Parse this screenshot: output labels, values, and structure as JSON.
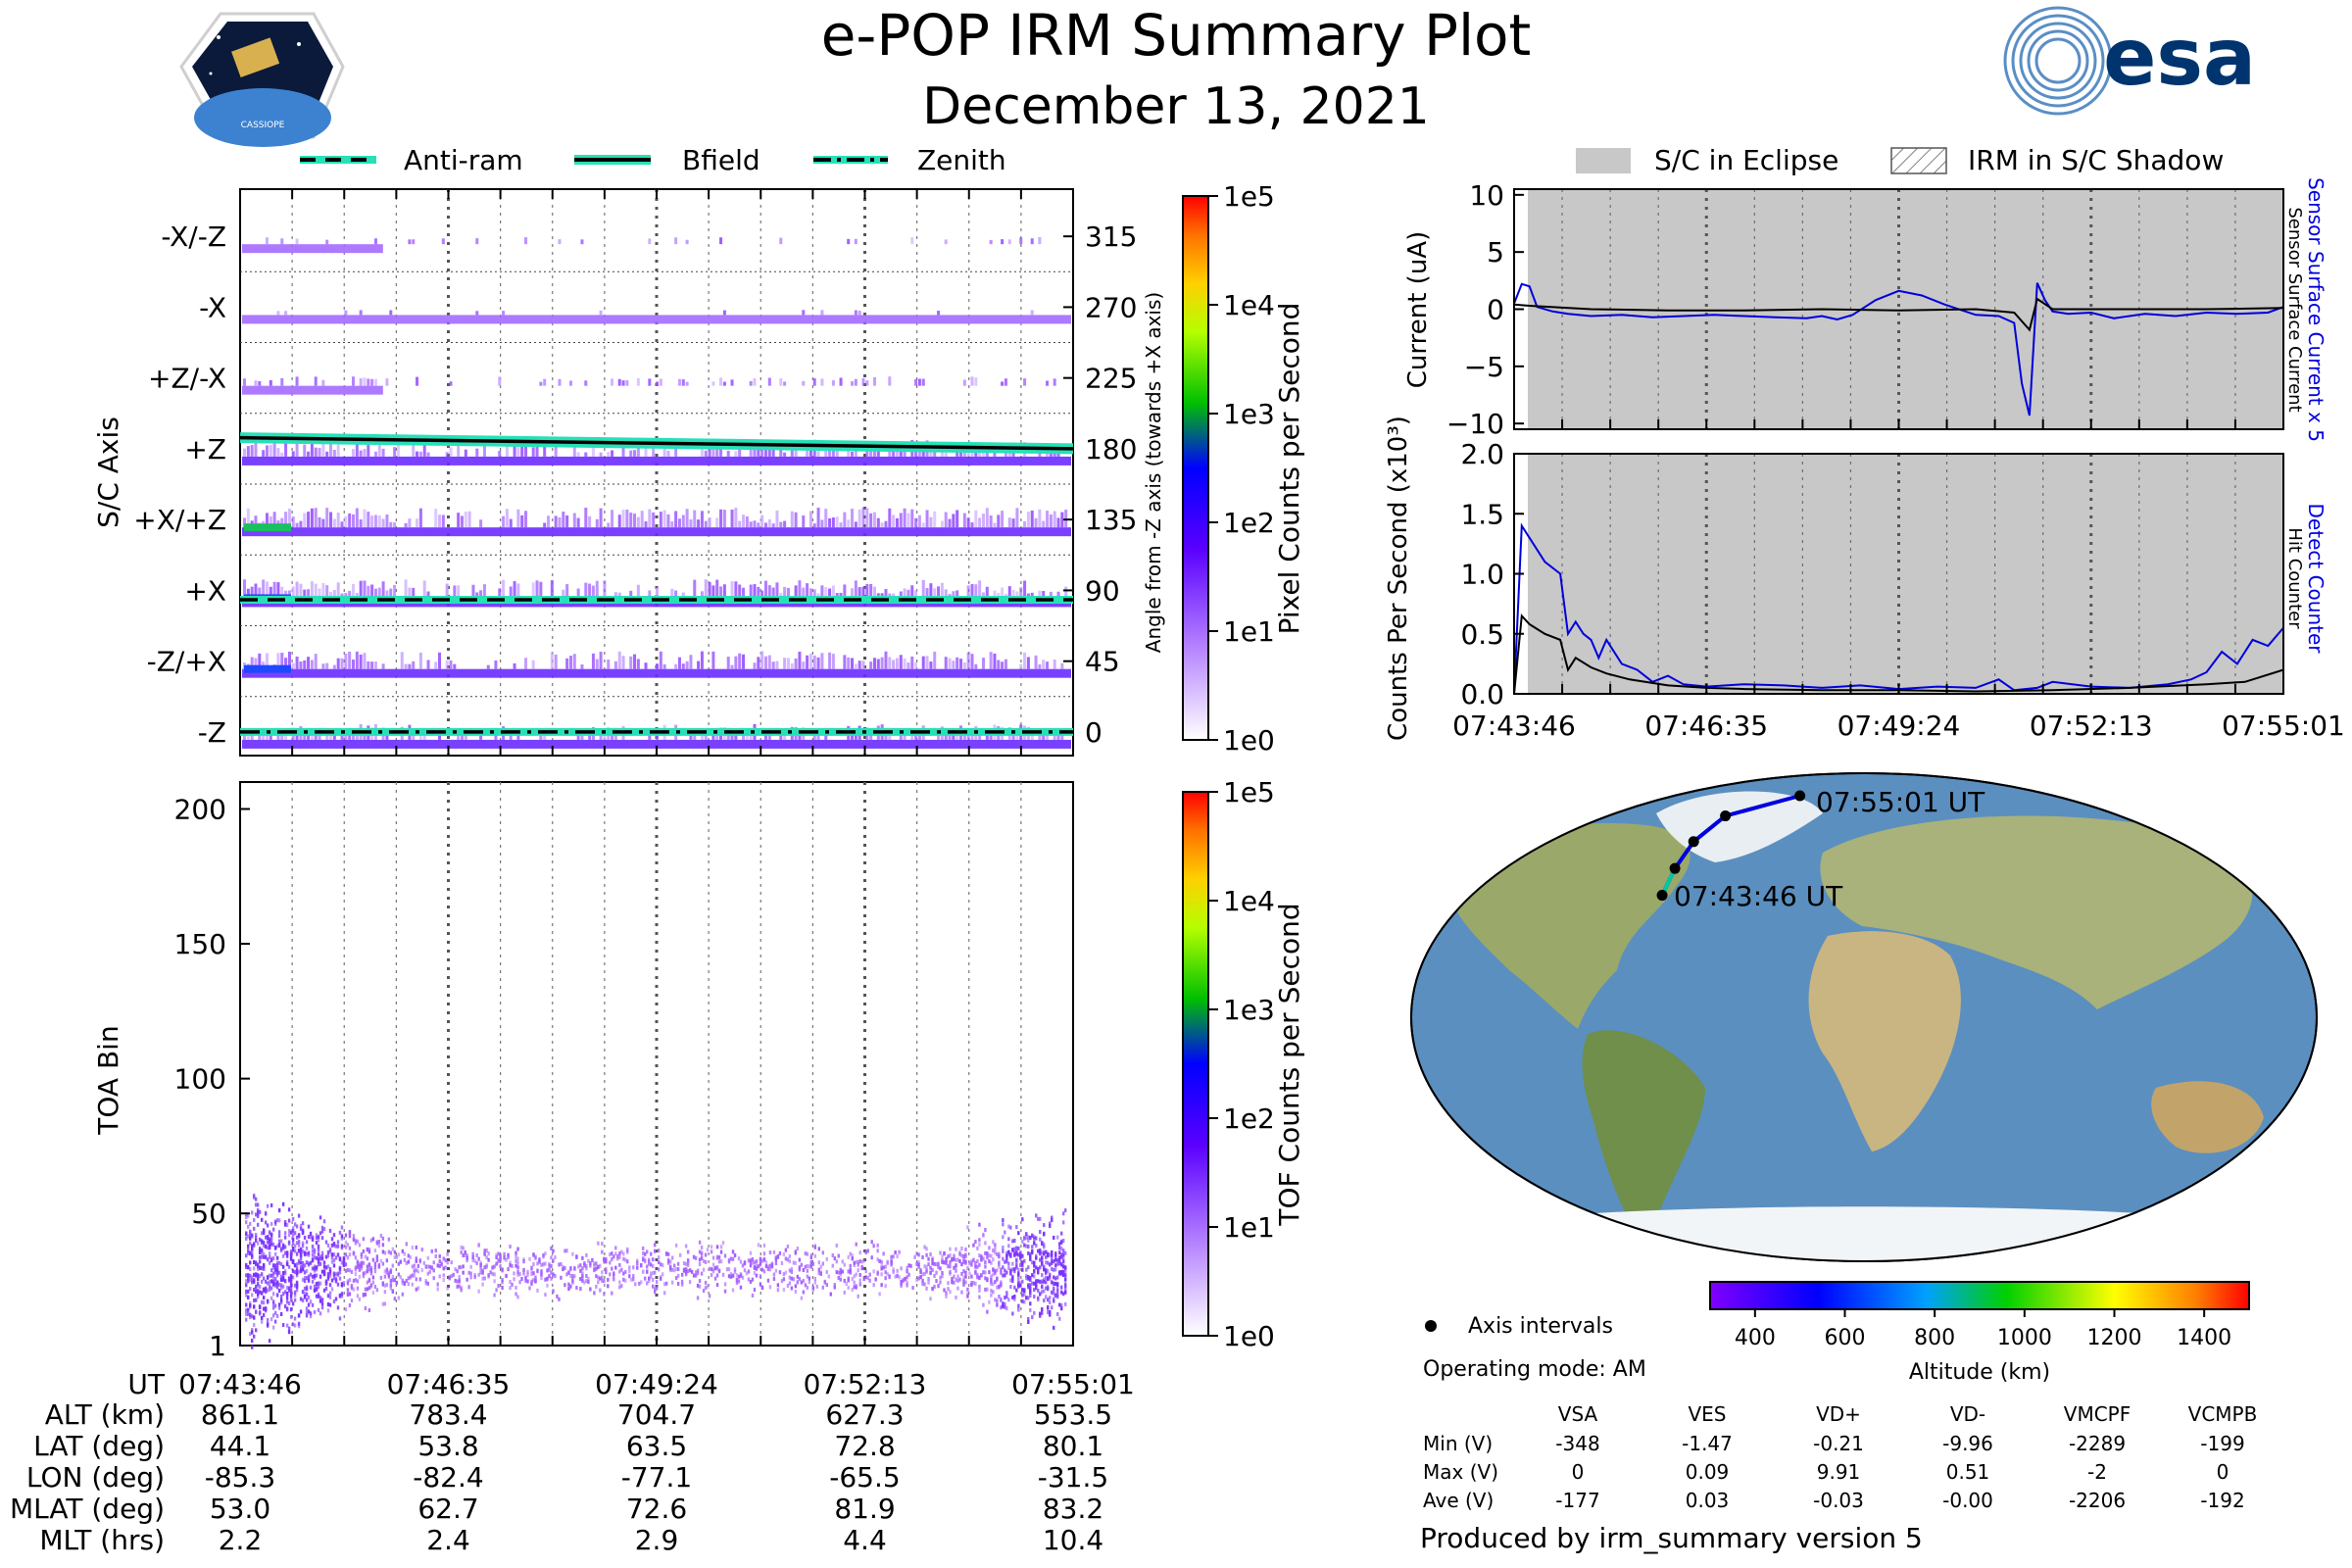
{
  "header": {
    "title": "e-POP IRM Summary Plot",
    "date": "December 13, 2021",
    "mission_logo_text": "CASSIOPE",
    "agency_logo_text": "esa"
  },
  "legend_top_left": [
    {
      "label": "Anti-ram",
      "style": "dashed"
    },
    {
      "label": "Bfield",
      "style": "solid"
    },
    {
      "label": "Zenith",
      "style": "dashdot"
    }
  ],
  "legend_top_right": [
    {
      "label": "S/C in Eclipse",
      "swatch": "gray"
    },
    {
      "label": "IRM in S/C Shadow",
      "swatch": "hatched"
    }
  ],
  "colors": {
    "axis_line": "#000000",
    "eclipse_fill": "#c8c8c8",
    "shadow_hatch": "#7a7a7a",
    "pixel_counts": "#9a36ff",
    "pixel_counts_high": "#2a3cff",
    "field_line": "#000000",
    "field_halo": "#27e0b8",
    "sensor_blue": "#0000dd",
    "sensor_black": "#000000",
    "orbit_track": "#0000dd"
  },
  "time_axis": {
    "label": "UT",
    "ticks": [
      "07:43:46",
      "07:46:35",
      "07:49:24",
      "07:52:13",
      "07:55:01"
    ]
  },
  "ephemeris": {
    "rows": [
      {
        "label": "ALT (km)",
        "values": [
          "861.1",
          "783.4",
          "704.7",
          "627.3",
          "553.5"
        ]
      },
      {
        "label": "LAT (deg)",
        "values": [
          "44.1",
          "53.8",
          "63.5",
          "72.8",
          "80.1"
        ]
      },
      {
        "label": "LON (deg)",
        "values": [
          "-85.3",
          "-82.4",
          "-77.1",
          "-65.5",
          "-31.5"
        ]
      },
      {
        "label": "MLAT (deg)",
        "values": [
          "53.0",
          "62.7",
          "72.6",
          "81.9",
          "83.2"
        ]
      },
      {
        "label": "MLT (hrs)",
        "values": [
          "2.2",
          "2.4",
          "2.9",
          "4.4",
          "10.4"
        ]
      }
    ]
  },
  "chart_data": [
    {
      "type": "heatmap",
      "name": "pixel_counts",
      "ylabel": "S/C Axis",
      "right_ylabel": "Angle from -Z axis (towards +X axis)",
      "axis_categories": [
        "-X/-Z",
        "-X",
        "+Z/-X",
        "+Z",
        "+X/+Z",
        "+X",
        "-Z/+X",
        "-Z"
      ],
      "right_ticks": [
        315,
        270,
        225,
        180,
        135,
        90,
        45,
        0
      ],
      "ylim": [
        -15,
        345
      ],
      "x_ticks": [
        "07:43:46",
        "07:46:35",
        "07:49:24",
        "07:52:13",
        "07:55:01"
      ],
      "colorbar": {
        "label": "Pixel Counts per Second",
        "scale": "log",
        "ticks": [
          "1e0",
          "1e1",
          "1e2",
          "1e3",
          "1e4",
          "1e5"
        ]
      },
      "lines": [
        {
          "name": "Bfield",
          "angle_start": 187,
          "angle_end": 180
        },
        {
          "name": "Anti-ram",
          "angle": 84
        },
        {
          "name": "Zenith",
          "angle": 0
        }
      ]
    },
    {
      "type": "heatmap",
      "name": "tof_counts",
      "ylabel": "TOA Bin",
      "y_ticks": [
        1,
        50,
        100,
        150,
        200
      ],
      "ylim": [
        1,
        210
      ],
      "x_ticks": [
        "07:43:46",
        "07:46:35",
        "07:49:24",
        "07:52:13",
        "07:55:01"
      ],
      "colorbar": {
        "label": "TOF Counts per Second",
        "scale": "log",
        "ticks": [
          "1e0",
          "1e1",
          "1e2",
          "1e3",
          "1e4",
          "1e5"
        ]
      },
      "band_center": 30
    },
    {
      "type": "line",
      "name": "sensor_current",
      "ylabel": "Current (uA)",
      "right_labels": [
        "Sensor Surface Current x 5",
        "Sensor Surface Current"
      ],
      "ylim": [
        -10.5,
        10.5
      ],
      "y_ticks": [
        -10,
        -5,
        0,
        5,
        10
      ],
      "x_ticks": [
        "07:43:46",
        "07:46:35",
        "07:49:24",
        "07:52:13",
        "07:55:01"
      ],
      "series": [
        {
          "name": "Sensor Surface Current x 5",
          "color": "blue",
          "x": [
            0.0,
            0.01,
            0.02,
            0.03,
            0.05,
            0.07,
            0.1,
            0.14,
            0.18,
            0.22,
            0.26,
            0.3,
            0.34,
            0.38,
            0.4,
            0.42,
            0.44,
            0.47,
            0.5,
            0.53,
            0.56,
            0.6,
            0.63,
            0.65,
            0.66,
            0.67,
            0.68,
            0.69,
            0.7,
            0.72,
            0.75,
            0.78,
            0.82,
            0.86,
            0.9,
            0.94,
            0.98,
            1.0
          ],
          "y": [
            0.5,
            2.2,
            2.0,
            0.2,
            -0.2,
            -0.4,
            -0.6,
            -0.5,
            -0.7,
            -0.6,
            -0.5,
            -0.6,
            -0.7,
            -0.8,
            -0.6,
            -0.9,
            -0.5,
            0.8,
            1.6,
            1.2,
            0.4,
            -0.5,
            -0.6,
            -1.2,
            -6.5,
            -9.3,
            2.3,
            0.8,
            -0.2,
            -0.4,
            -0.3,
            -0.8,
            -0.4,
            -0.6,
            -0.3,
            -0.4,
            -0.3,
            0.2
          ]
        },
        {
          "name": "Sensor Surface Current",
          "color": "black",
          "x": [
            0.0,
            0.02,
            0.1,
            0.2,
            0.3,
            0.4,
            0.5,
            0.6,
            0.65,
            0.67,
            0.68,
            0.7,
            0.8,
            0.9,
            1.0
          ],
          "y": [
            0.4,
            0.3,
            0.0,
            -0.1,
            -0.1,
            0.0,
            -0.1,
            0.0,
            -0.3,
            -1.8,
            0.9,
            0.0,
            0.0,
            0.0,
            0.1
          ]
        }
      ]
    },
    {
      "type": "line",
      "name": "hit_counter",
      "ylabel": "Counts Per Second (x10³)",
      "right_labels": [
        "Detect Counter",
        "Hit Counter"
      ],
      "ylim": [
        0.0,
        2.0
      ],
      "y_ticks": [
        0.0,
        0.5,
        1.0,
        1.5,
        2.0
      ],
      "x_ticks": [
        "07:43:46",
        "07:46:35",
        "07:49:24",
        "07:52:13",
        "07:55:01"
      ],
      "series": [
        {
          "name": "Detect Counter",
          "color": "blue",
          "x": [
            0.0,
            0.01,
            0.02,
            0.04,
            0.06,
            0.07,
            0.08,
            0.09,
            0.1,
            0.11,
            0.12,
            0.14,
            0.16,
            0.18,
            0.2,
            0.22,
            0.25,
            0.3,
            0.35,
            0.4,
            0.45,
            0.5,
            0.55,
            0.6,
            0.63,
            0.65,
            0.68,
            0.7,
            0.75,
            0.8,
            0.85,
            0.88,
            0.9,
            0.92,
            0.94,
            0.96,
            0.98,
            1.0
          ],
          "y": [
            0.0,
            1.4,
            1.3,
            1.1,
            1.0,
            0.5,
            0.6,
            0.5,
            0.45,
            0.3,
            0.45,
            0.25,
            0.2,
            0.1,
            0.15,
            0.08,
            0.06,
            0.08,
            0.07,
            0.05,
            0.07,
            0.04,
            0.06,
            0.05,
            0.12,
            0.03,
            0.05,
            0.1,
            0.06,
            0.05,
            0.08,
            0.12,
            0.18,
            0.35,
            0.25,
            0.45,
            0.4,
            0.55
          ]
        },
        {
          "name": "Hit Counter",
          "color": "black",
          "x": [
            0.0,
            0.01,
            0.02,
            0.04,
            0.06,
            0.07,
            0.08,
            0.1,
            0.12,
            0.15,
            0.2,
            0.25,
            0.3,
            0.4,
            0.5,
            0.6,
            0.7,
            0.8,
            0.9,
            0.95,
            1.0
          ],
          "y": [
            0.0,
            0.65,
            0.58,
            0.5,
            0.45,
            0.2,
            0.3,
            0.22,
            0.17,
            0.12,
            0.07,
            0.05,
            0.04,
            0.03,
            0.03,
            0.02,
            0.03,
            0.05,
            0.08,
            0.1,
            0.2
          ]
        }
      ]
    }
  ],
  "map": {
    "start_label": "07:43:46 UT",
    "end_label": "07:55:01 UT",
    "track": [
      {
        "lon": -85.3,
        "lat": 44.1
      },
      {
        "lon": -82.4,
        "lat": 53.8
      },
      {
        "lon": -77.1,
        "lat": 63.5
      },
      {
        "lon": -65.5,
        "lat": 72.8
      },
      {
        "lon": -31.5,
        "lat": 80.1
      }
    ],
    "legend_label": "Axis intervals",
    "colorbar": {
      "label": "Altitude (km)",
      "ticks": [
        "400",
        "600",
        "800",
        "1000",
        "1200",
        "1400"
      ]
    }
  },
  "operating_mode": "Operating mode: AM",
  "voltage_table": {
    "columns": [
      "VSA",
      "VES",
      "VD+",
      "VD-",
      "VMCPF",
      "VCMPB"
    ],
    "rows": [
      {
        "label": "Min (V)",
        "values": [
          "-348",
          "-1.47",
          "-0.21",
          "-9.96",
          "-2289",
          "-199"
        ]
      },
      {
        "label": "Max (V)",
        "values": [
          "0",
          "0.09",
          "9.91",
          "0.51",
          "-2",
          "0"
        ]
      },
      {
        "label": "Ave (V)",
        "values": [
          "-177",
          "0.03",
          "-0.03",
          "-0.00",
          "-2206",
          "-192"
        ]
      }
    ]
  },
  "footer": "Produced by irm_summary version 5"
}
